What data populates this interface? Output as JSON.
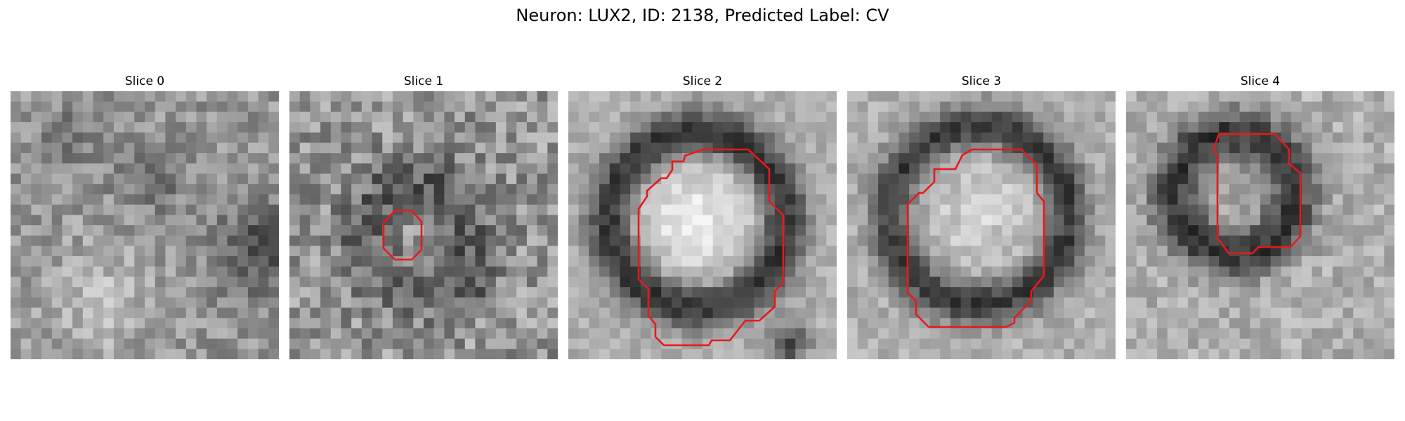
{
  "figure": {
    "title": "Neuron: LUX2, ID: 2138, Predicted Label: CV",
    "outline_color": "#e8191a"
  },
  "panels": [
    {
      "title": "Slice 0",
      "has_outline": false,
      "ring": "none"
    },
    {
      "title": "Slice 1",
      "has_outline": true,
      "ring": "faint"
    },
    {
      "title": "Slice 2",
      "has_outline": true,
      "ring": "large-bright"
    },
    {
      "title": "Slice 3",
      "has_outline": true,
      "ring": "large"
    },
    {
      "title": "Slice 4",
      "has_outline": true,
      "ring": "dark-medium"
    }
  ]
}
